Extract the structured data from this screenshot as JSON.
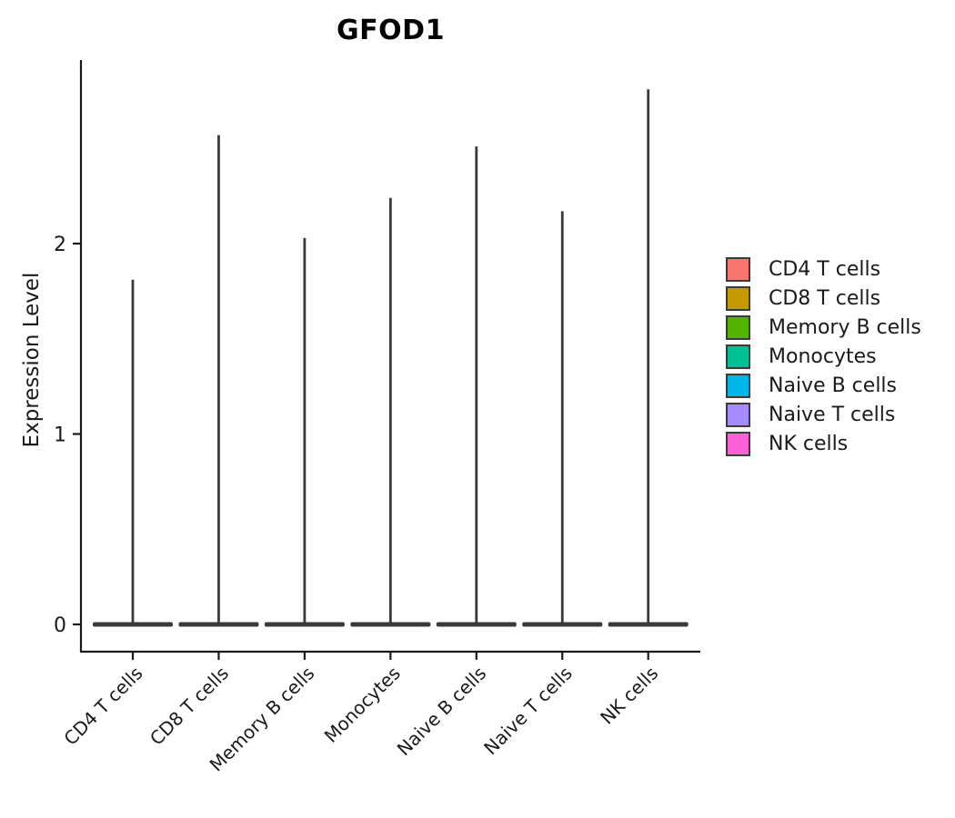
{
  "chart_data": {
    "type": "violin",
    "title": "GFOD1",
    "ylabel": "Expression Level",
    "xlabel": "",
    "categories": [
      "CD4 T cells",
      "CD8 T cells",
      "Memory B cells",
      "Monocytes",
      "Naive B cells",
      "Naive T cells",
      "NK cells"
    ],
    "colors": [
      "#F8766D",
      "#C49A00",
      "#53B400",
      "#00C094",
      "#00B6EB",
      "#A58AFF",
      "#FB61D7"
    ],
    "max_values": [
      1.81,
      2.57,
      2.03,
      2.24,
      2.51,
      2.17,
      2.81
    ],
    "baseline_value": 0,
    "bulk_of_distribution_at": 0,
    "yticks": [
      0,
      1,
      2
    ],
    "ylim": [
      -0.12,
      2.95
    ],
    "grid": false,
    "legend_position": "right",
    "violin_outline_color": "#3A3A3A",
    "axis_color": "#1a1a1a"
  }
}
